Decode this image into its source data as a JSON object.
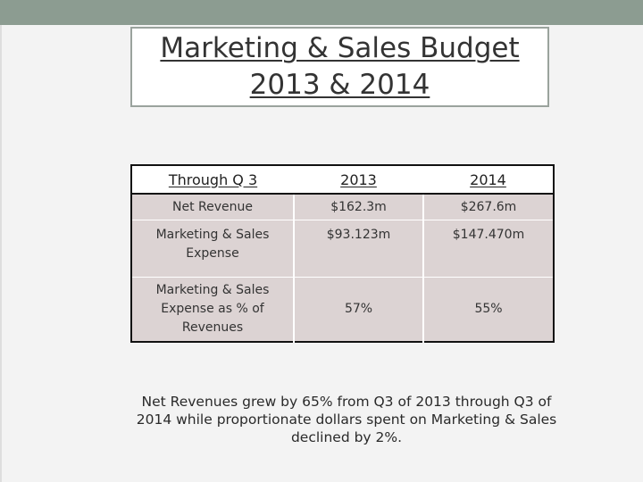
{
  "title": {
    "line1": "Marketing & Sales Budget",
    "line2": "2013 & 2014"
  },
  "table": {
    "headers": [
      "Through Q 3",
      "2013",
      "2014"
    ],
    "rows": [
      {
        "label": "Net Revenue",
        "y2013": "$162.3m",
        "y2014": "$267.6m"
      },
      {
        "label": "Marketing & Sales Expense",
        "y2013": "$93.123m",
        "y2014": "$147.470m"
      },
      {
        "label": "Marketing & Sales Expense as % of Revenues",
        "y2013": "57%",
        "y2014": "55%"
      }
    ]
  },
  "caption": "Net Revenues grew by 65% from Q3 of 2013 through Q3 of 2014 while proportionate dollars spent on Marketing & Sales declined by 2%.",
  "colors": {
    "top_bar": "#8c9c91",
    "table_cell_fill": "#dcd3d3",
    "title_border": "#9aa39d"
  }
}
